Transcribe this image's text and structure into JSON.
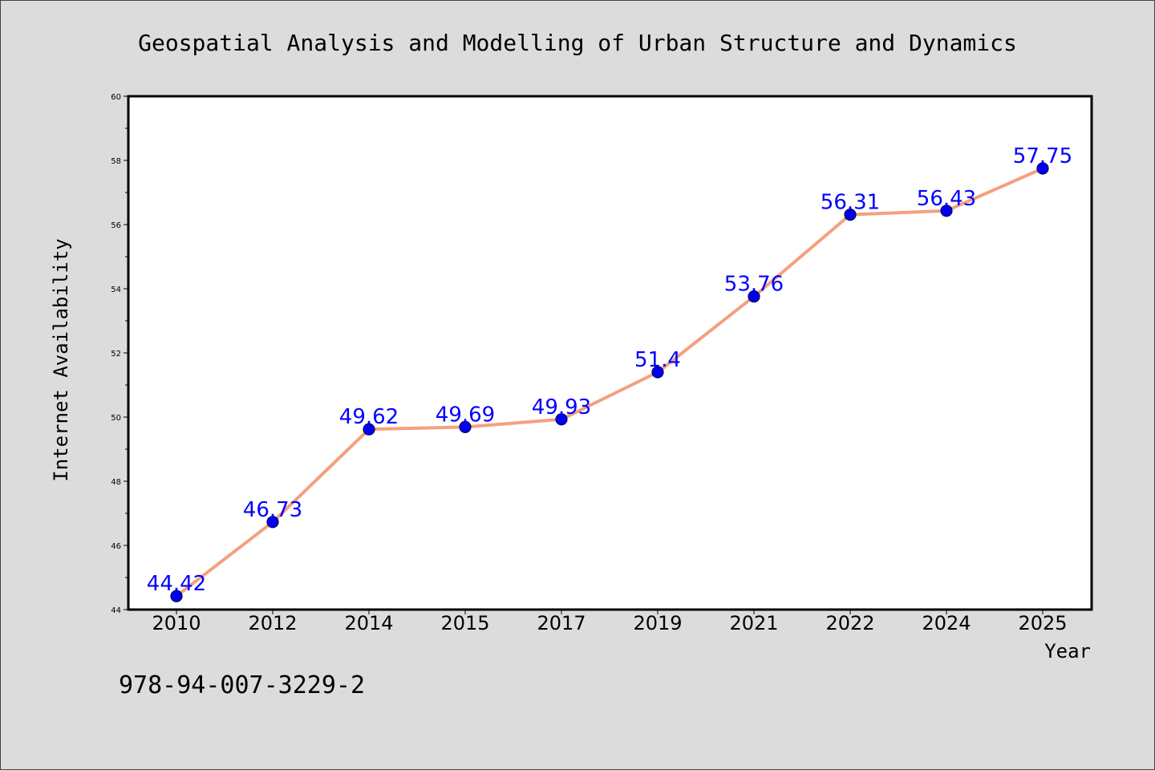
{
  "chart_data": {
    "type": "line",
    "title": "Geospatial Analysis and Modelling of Urban Structure and Dynamics",
    "xlabel": "Year",
    "ylabel": "Internet Availability",
    "categories": [
      "2010",
      "2012",
      "2014",
      "2015",
      "2017",
      "2019",
      "2021",
      "2022",
      "2024",
      "2025"
    ],
    "series": [
      {
        "values": [
          44.42,
          46.73,
          49.62,
          49.69,
          49.93,
          51.4,
          53.76,
          56.31,
          56.43,
          57.75
        ]
      }
    ],
    "data_labels": [
      "44.42",
      "46.73",
      "49.62",
      "49.69",
      "49.93",
      "51.4",
      "53.76",
      "56.31",
      "56.43",
      "57.75"
    ],
    "ylim": [
      44,
      60
    ],
    "yticks": [
      "44",
      "46",
      "48",
      "50",
      "52",
      "54",
      "56",
      "58",
      "60"
    ],
    "grid": false,
    "legend": "none",
    "colors": {
      "line": "#f4a07f",
      "marker": "#0000ee",
      "marker_edge": "#000066",
      "label": "#0000ff",
      "background": "#dcdcdc",
      "plot_background": "#ffffff"
    },
    "marker": "circle"
  },
  "footer": {
    "isbn": "978-94-007-3229-2"
  }
}
